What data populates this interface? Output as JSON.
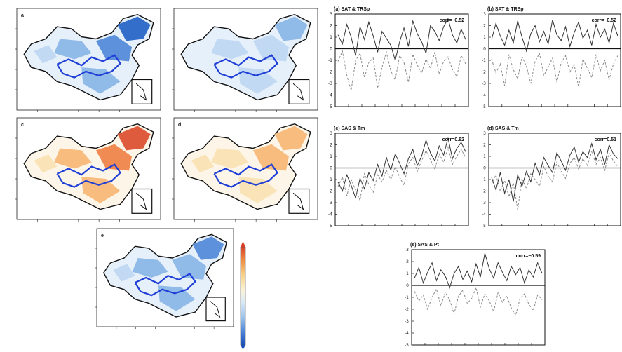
{
  "colors": {
    "boundary": "#1f3fd6",
    "land_outline": "#111111",
    "series_a": "#333333",
    "series_b": "#888888",
    "colorbar": [
      "#1b4fb8",
      "#4f86d8",
      "#9cc3ec",
      "#dbeaf7",
      "#fbf3d6",
      "#f6cf86",
      "#ef8f45",
      "#d8422a"
    ]
  },
  "maps": [
    {
      "id": "map-a",
      "label": "a",
      "palette": "blue",
      "intensity": 0.9
    },
    {
      "id": "map-b",
      "label": "",
      "palette": "blue",
      "intensity": 0.45
    },
    {
      "id": "map-c",
      "label": "c",
      "palette": "red",
      "intensity": 0.95
    },
    {
      "id": "map-d",
      "label": "d",
      "palette": "red",
      "intensity": 0.55
    },
    {
      "id": "map-e",
      "label": "e",
      "palette": "blue",
      "intensity": 0.75
    }
  ],
  "chart_data": [
    {
      "type": "line",
      "label": "(a) SAT & TRSp",
      "annotation": "corr=−0.52",
      "ylim": [
        -5,
        3
      ],
      "yticks": [
        3,
        2,
        1,
        0,
        -1,
        -2,
        -3,
        -4,
        -5
      ],
      "grid": false,
      "series": [
        {
          "values": [
            1.2,
            0.4,
            2.1,
            1.0,
            -0.6,
            1.9,
            0.8,
            2.3,
            1.1,
            -0.3,
            1.5,
            0.9,
            0.3,
            -1.0,
            0.6,
            1.8,
            0.2,
            2.4,
            1.3,
            0.6,
            -0.4,
            2.0,
            1.5,
            0.7,
            1.9,
            2.6,
            1.2,
            0.5,
            1.7,
            0.8
          ]
        },
        {
          "values": [
            -1.1,
            -0.2,
            -2.3,
            -3.6,
            -1.0,
            -0.4,
            -2.5,
            -1.2,
            -0.8,
            -3.4,
            -1.6,
            -0.3,
            -1.9,
            -2.7,
            -0.6,
            -1.2,
            -2.9,
            -0.5,
            -1.4,
            -2.1,
            -0.9,
            -1.7,
            -0.3,
            -2.2,
            -1.1,
            -0.7,
            -1.8,
            -2.4,
            -0.6,
            -1.3
          ]
        }
      ]
    },
    {
      "type": "line",
      "label": "(b) SAT & TRSp",
      "annotation": "corr=−0.52",
      "ylim": [
        -5,
        3
      ],
      "yticks": [
        3,
        2,
        1,
        0,
        -1,
        -2,
        -3,
        -4,
        -5
      ],
      "grid": false,
      "series": [
        {
          "values": [
            0.8,
            2.2,
            1.1,
            0.3,
            1.6,
            0.5,
            2.4,
            1.0,
            -0.2,
            1.3,
            2.0,
            0.6,
            1.5,
            0.4,
            2.5,
            1.2,
            0.7,
            1.9,
            0.2,
            1.4,
            2.3,
            0.9,
            1.6,
            0.3,
            2.1,
            1.0,
            1.7,
            0.5,
            2.2,
            1.1
          ]
        },
        {
          "values": [
            -0.9,
            -2.1,
            -1.3,
            -3.2,
            -0.5,
            -1.8,
            -2.6,
            -0.7,
            -1.5,
            -3.0,
            -1.1,
            -0.4,
            -2.3,
            -1.6,
            -0.8,
            -2.9,
            -1.2,
            -0.6,
            -2.0,
            -1.4,
            -3.3,
            -0.9,
            -1.7,
            -2.5,
            -0.5,
            -1.9,
            -1.0,
            -2.7,
            -1.3,
            -0.6
          ]
        }
      ]
    },
    {
      "type": "line",
      "label": "(c) SAS & Tm",
      "annotation": "corr=0.62",
      "ylim": [
        -5,
        3
      ],
      "yticks": [
        3,
        2,
        1,
        0,
        -1,
        -2,
        -3,
        -4,
        -5
      ],
      "grid": false,
      "series": [
        {
          "values": [
            -1.2,
            -2.0,
            -0.6,
            -1.5,
            -2.6,
            -0.9,
            -1.8,
            -0.4,
            -1.1,
            0.3,
            -0.7,
            0.9,
            -0.2,
            1.2,
            0.4,
            -0.5,
            0.8,
            1.6,
            0.2,
            1.0,
            2.4,
            1.3,
            0.6,
            1.9,
            1.1,
            2.6,
            0.8,
            1.7,
            2.2,
            1.4
          ]
        },
        {
          "values": [
            -1.6,
            -0.8,
            -2.4,
            -1.0,
            -1.9,
            -2.8,
            -0.5,
            -1.4,
            -2.1,
            -0.6,
            -1.2,
            -0.2,
            -1.0,
            0.1,
            -0.8,
            -1.5,
            0.4,
            0.9,
            -0.3,
            0.6,
            1.5,
            0.7,
            -0.1,
            1.2,
            0.5,
            1.8,
            0.3,
            1.0,
            1.6,
            0.9
          ]
        }
      ]
    },
    {
      "type": "line",
      "label": "(d) SAS & Tm",
      "annotation": "corr=0.51",
      "ylim": [
        -5,
        3
      ],
      "yticks": [
        3,
        2,
        1,
        0,
        -1,
        -2,
        -3,
        -4,
        -5
      ],
      "grid": false,
      "series": [
        {
          "values": [
            -0.8,
            -1.9,
            -0.4,
            -2.2,
            -1.0,
            -2.9,
            -0.6,
            -1.6,
            -0.3,
            -1.2,
            0.4,
            -0.6,
            0.9,
            0.2,
            -0.4,
            1.3,
            0.6,
            -0.2,
            1.1,
            1.8,
            0.5,
            1.4,
            0.9,
            2.1,
            0.7,
            1.6,
            0.3,
            2.0,
            1.2,
            0.8
          ]
        },
        {
          "values": [
            -1.4,
            -0.6,
            -2.0,
            -1.1,
            -2.5,
            -1.3,
            -3.6,
            -0.9,
            -1.8,
            -0.5,
            -1.0,
            -1.6,
            0.1,
            -0.7,
            -1.2,
            0.5,
            -0.3,
            -0.9,
            0.4,
            0.9,
            -0.1,
            0.8,
            0.2,
            1.4,
            0.3,
            0.9,
            -0.2,
            1.3,
            0.6,
            0.1
          ]
        }
      ]
    },
    {
      "type": "line",
      "label": "(e) SAS & Pt",
      "annotation": "corr=−0.59",
      "ylim": [
        -5,
        3
      ],
      "yticks": [
        3,
        2,
        1,
        0,
        -1,
        -2,
        -3,
        -4,
        -5
      ],
      "grid": false,
      "series": [
        {
          "values": [
            0.6,
            1.5,
            0.2,
            1.1,
            1.9,
            0.4,
            1.3,
            0.8,
            -0.2,
            1.0,
            1.6,
            0.5,
            1.2,
            0.3,
            1.8,
            0.7,
            2.7,
            1.4,
            0.6,
            1.9,
            1.1,
            0.4,
            1.6,
            0.9,
            1.5,
            0.2,
            1.3,
            0.7,
            1.9,
            1.0
          ]
        },
        {
          "values": [
            -0.5,
            -1.3,
            -0.8,
            -2.0,
            -1.0,
            -0.3,
            -1.7,
            -0.6,
            -1.2,
            -2.4,
            -0.9,
            -0.4,
            -1.5,
            -1.1,
            -0.2,
            -1.8,
            -0.7,
            -1.3,
            -2.2,
            -0.6,
            -1.4,
            -0.9,
            -1.9,
            -2.5,
            -1.1,
            -0.7,
            -1.6,
            -2.1,
            -0.8,
            -1.2
          ]
        }
      ]
    }
  ]
}
